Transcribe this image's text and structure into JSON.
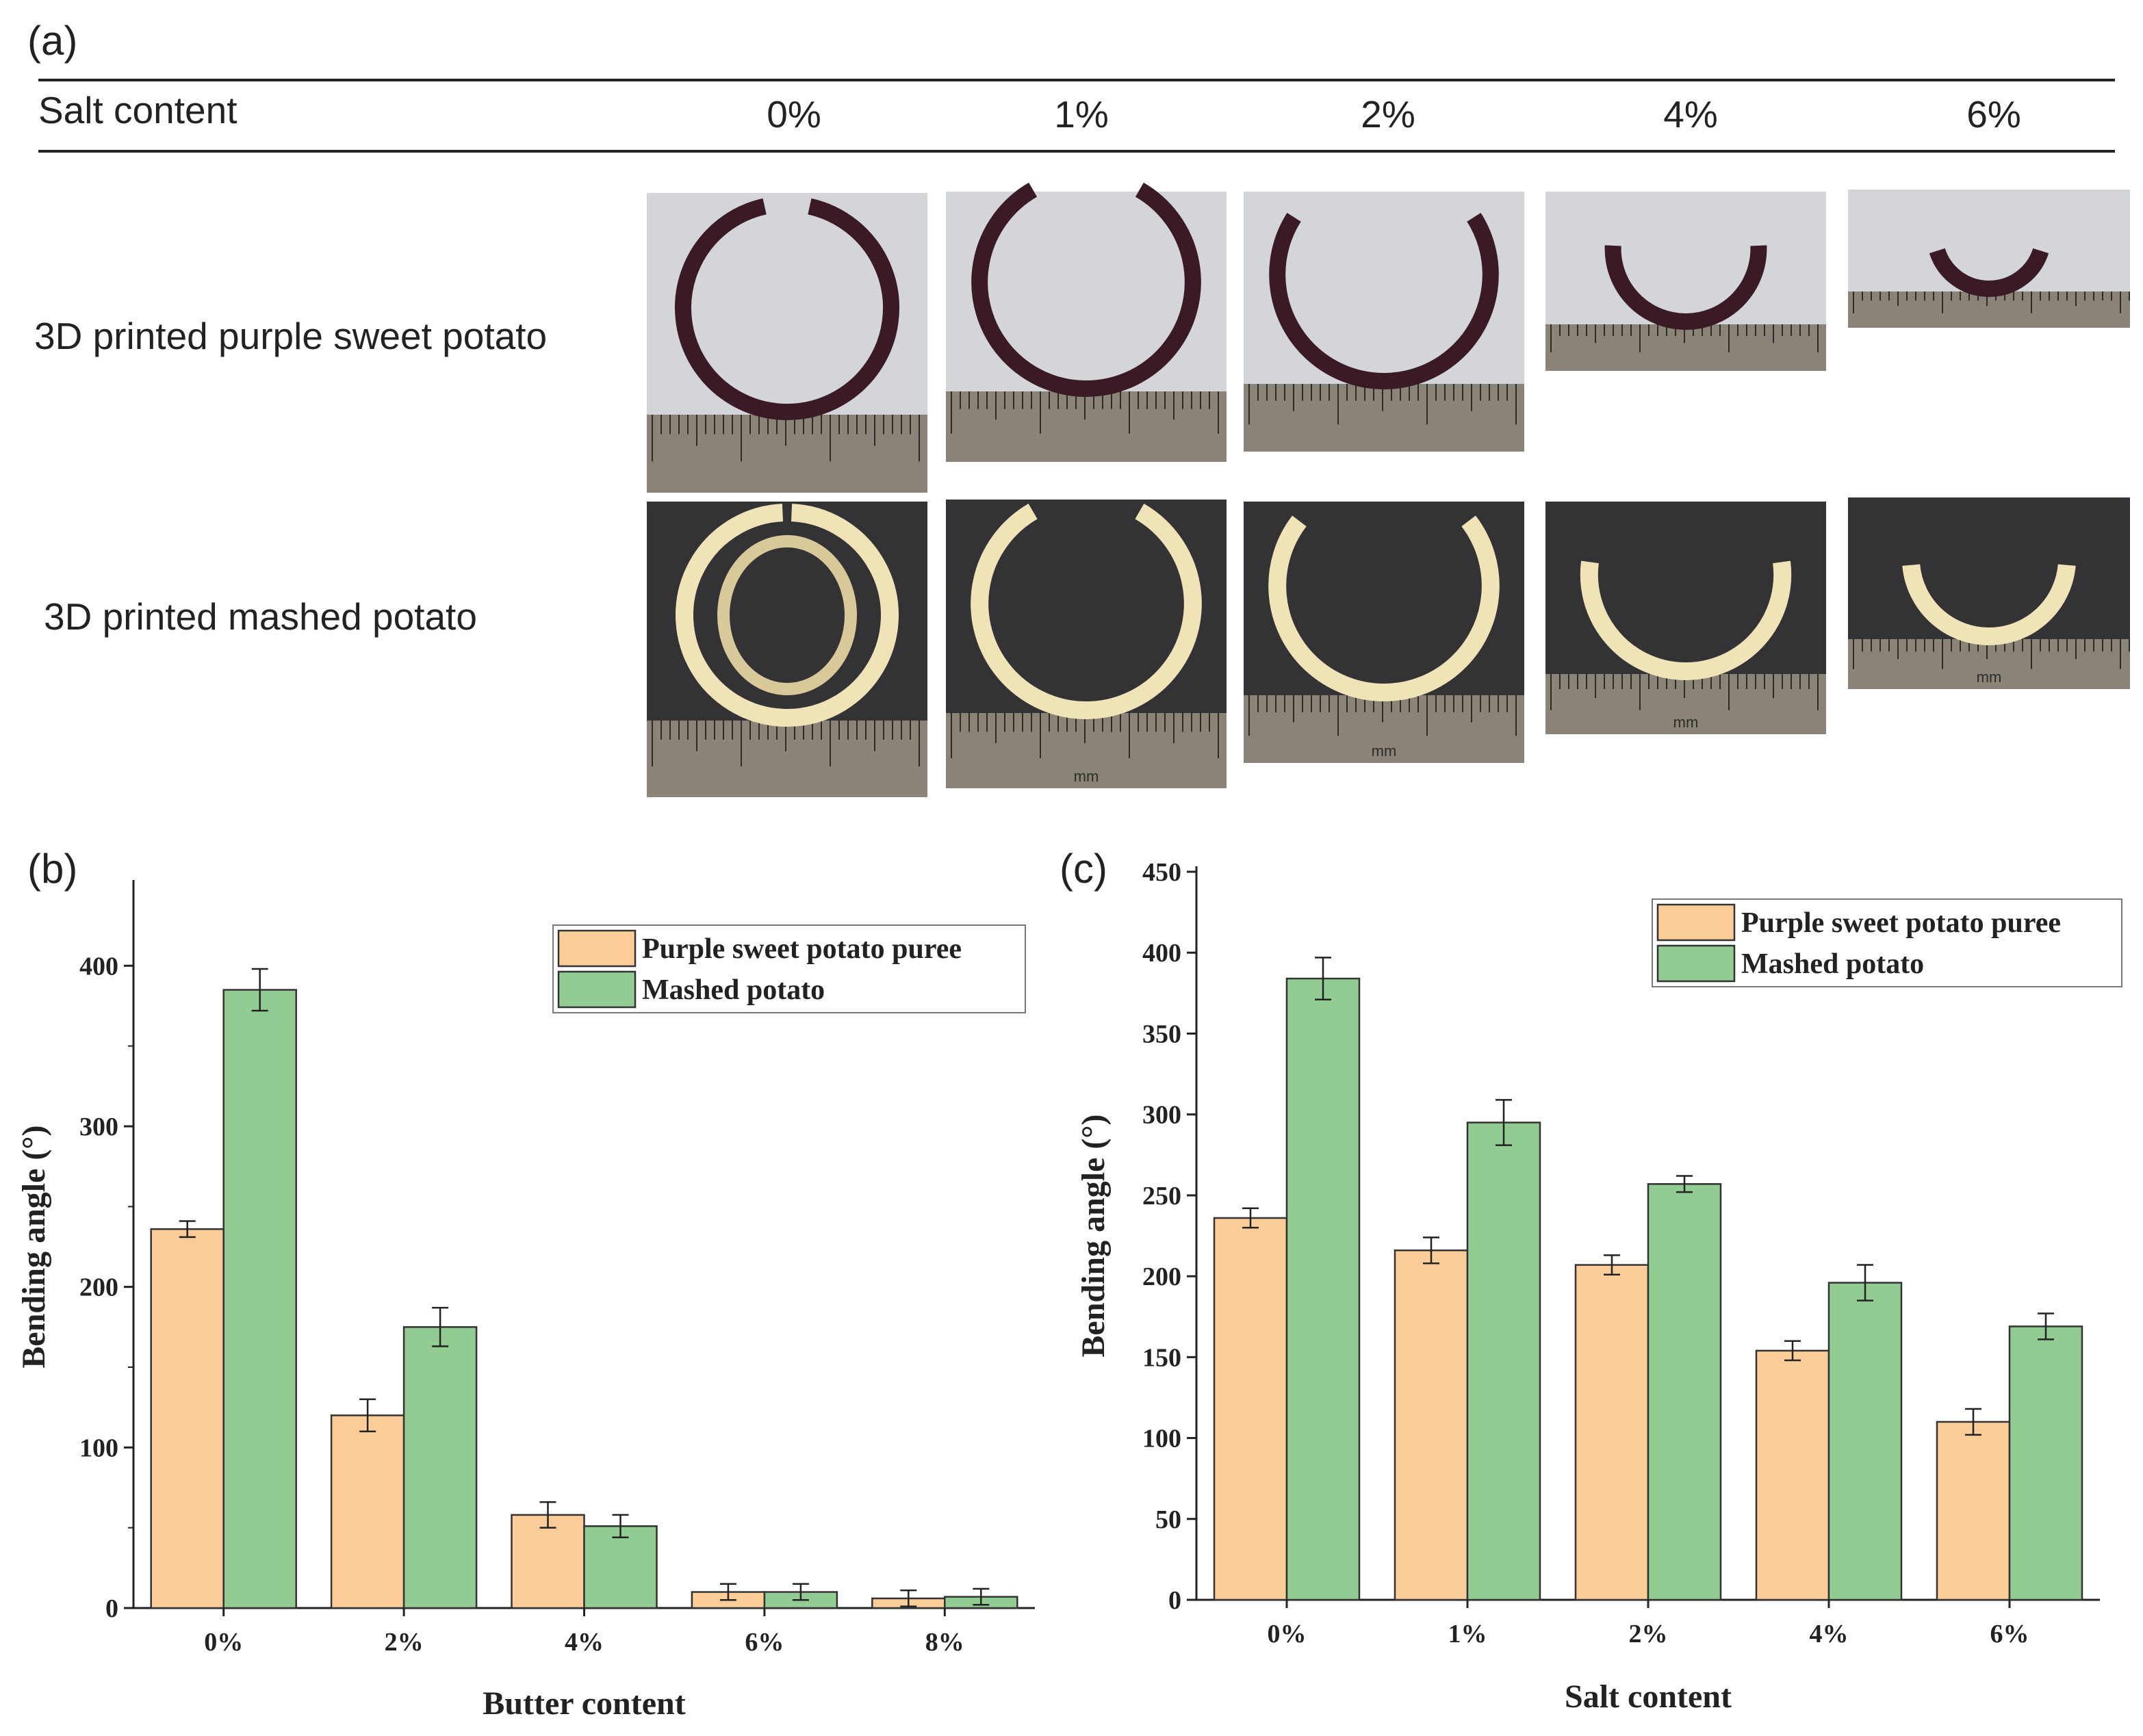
{
  "panel_a": {
    "label": "(a)",
    "header_label": "Salt content",
    "columns": [
      "0%",
      "1%",
      "2%",
      "4%",
      "6%"
    ],
    "rows": [
      {
        "label": "3D printed purple sweet potato",
        "material": "purple",
        "arcs": [
          335,
          300,
          245,
          185,
          145
        ]
      },
      {
        "label": "3D printed mashed potato",
        "material": "mashed",
        "arcs": [
          385,
          300,
          255,
          195,
          170
        ]
      }
    ],
    "ruler_label": "mm",
    "colors": {
      "purple": "#3a1a24",
      "mashed": "#f0e3b8",
      "light_bg": "#d4d5d9",
      "dark_bg": "#333336",
      "ruler": "#8a8478"
    }
  },
  "chart_data": [
    {
      "panel": "(b)",
      "type": "bar",
      "categories": [
        "0%",
        "2%",
        "4%",
        "6%",
        "8%"
      ],
      "series": [
        {
          "name": "Purple sweet potato puree",
          "color": "#fccc99",
          "values": [
            236,
            120,
            58,
            10,
            6
          ],
          "errors": [
            5,
            10,
            8,
            5,
            5
          ]
        },
        {
          "name": "Mashed potato",
          "color": "#93cc93",
          "values": [
            385,
            175,
            51,
            10,
            7
          ],
          "errors": [
            13,
            12,
            7,
            5,
            5
          ]
        }
      ],
      "xlabel": "Butter content",
      "ylabel": "Bending angle (°)",
      "ylim": [
        0,
        450
      ],
      "yticks": [
        0,
        100,
        200,
        300,
        400
      ],
      "legend": "top-right"
    },
    {
      "panel": "(c)",
      "type": "bar",
      "categories": [
        "0%",
        "1%",
        "2%",
        "4%",
        "6%"
      ],
      "series": [
        {
          "name": "Purple sweet potato puree",
          "color": "#fccc99",
          "values": [
            236,
            216,
            207,
            154,
            110
          ],
          "errors": [
            6,
            8,
            6,
            6,
            8
          ]
        },
        {
          "name": "Mashed potato",
          "color": "#93cc93",
          "values": [
            384,
            295,
            257,
            196,
            169
          ],
          "errors": [
            13,
            14,
            5,
            11,
            8
          ]
        }
      ],
      "xlabel": "Salt content",
      "ylabel": "Bending angle (°)",
      "ylim": [
        0,
        450
      ],
      "yticks": [
        0,
        50,
        100,
        150,
        200,
        250,
        300,
        350,
        400,
        450
      ],
      "legend": "top-right"
    }
  ]
}
